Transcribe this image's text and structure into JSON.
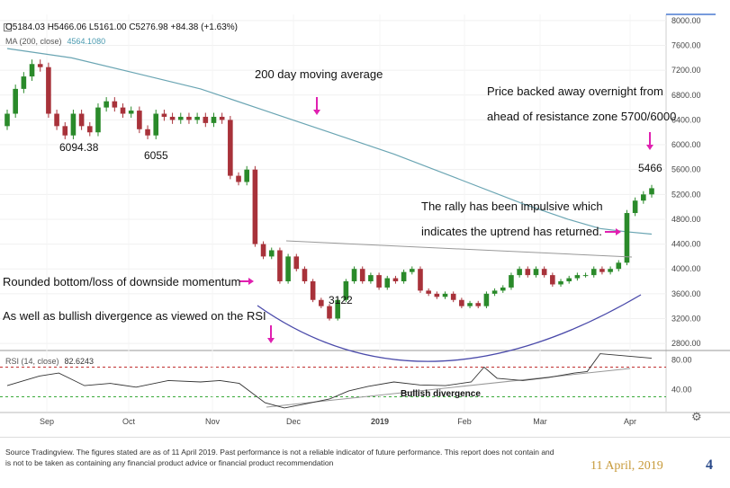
{
  "header": {
    "ohlc": "O5184.03  H5466.06  L5161.00  C5276.98  +84.38 (+1.63%)",
    "ma_label": "MA (200, close)",
    "ma_value": "4564.1080",
    "rsi_label": "RSI (14, close)",
    "rsi_value": "82.6243"
  },
  "annotations": {
    "ma_title": "200 day moving average",
    "price_line1": "Price backed away overnight from",
    "price_line2": "ahead of resistance zone 5700/6000",
    "rally_line1": "The rally has been impulsive which",
    "rally_line2": "indicates the uptrend has returned.",
    "rounded": "Rounded bottom/loss of downside momentum",
    "bullish": "As well as bullish divergence as viewed on the RSI",
    "bull_div": "Bullish divergence",
    "low1": "6094.38",
    "low2": "6055",
    "low3": "3122",
    "high1": "5466"
  },
  "footer": {
    "source": "Source Tradingview. The figures stated are as of 11 April 2019.  Past performance is not a reliable indicator of future performance.  This report does not contain and is not to be taken as containing any financial product advice or financial product recommendation",
    "date": "11 April, 2019",
    "page": "4"
  },
  "colors": {
    "up": "#2a8a2a",
    "down": "#a8323a",
    "ma": "#6aa5b3",
    "curve": "#4a4aaa",
    "arrow": "#e020b0"
  },
  "chart_data": {
    "type": "candlestick",
    "x_ticks": [
      "Sep",
      "Oct",
      "Nov",
      "Dec",
      "2019",
      "Feb",
      "Mar",
      "Apr"
    ],
    "price_ticks": [
      8000,
      7600,
      7200,
      6800,
      6400,
      6000,
      5600,
      5200,
      4800,
      4400,
      4000,
      3600,
      3200,
      2800
    ],
    "rsi_ticks": [
      80,
      40
    ],
    "ylim": [
      2700,
      8100
    ],
    "rsi_ylim": [
      10,
      90
    ],
    "rsi_levels": [
      70,
      30
    ],
    "price": [
      [
        6300,
        6500
      ],
      [
        6500,
        6900
      ],
      [
        6900,
        7100
      ],
      [
        7100,
        7300
      ],
      [
        7300,
        7250
      ],
      [
        7250,
        6500
      ],
      [
        6500,
        6300
      ],
      [
        6300,
        6150
      ],
      [
        6150,
        6500
      ],
      [
        6500,
        6300
      ],
      [
        6300,
        6200
      ],
      [
        6200,
        6600
      ],
      [
        6600,
        6700
      ],
      [
        6700,
        6600
      ],
      [
        6600,
        6500
      ],
      [
        6500,
        6550
      ],
      [
        6550,
        6250
      ],
      [
        6250,
        6150
      ],
      [
        6150,
        6500
      ],
      [
        6500,
        6450
      ],
      [
        6450,
        6400
      ],
      [
        6400,
        6450
      ],
      [
        6450,
        6400
      ],
      [
        6400,
        6450
      ],
      [
        6450,
        6350
      ],
      [
        6350,
        6450
      ],
      [
        6450,
        6400
      ],
      [
        6400,
        5500
      ],
      [
        5500,
        5400
      ],
      [
        5400,
        5600
      ],
      [
        5600,
        4400
      ],
      [
        4400,
        4200
      ],
      [
        4200,
        4300
      ],
      [
        4300,
        3800
      ],
      [
        3800,
        4200
      ],
      [
        4200,
        4000
      ],
      [
        4000,
        3800
      ],
      [
        3800,
        3500
      ],
      [
        3500,
        3400
      ],
      [
        3400,
        3200
      ],
      [
        3200,
        3500
      ],
      [
        3500,
        3800
      ],
      [
        3800,
        4000
      ],
      [
        4000,
        3800
      ],
      [
        3800,
        3900
      ],
      [
        3900,
        3700
      ],
      [
        3700,
        3850
      ],
      [
        3850,
        3800
      ],
      [
        3800,
        3950
      ],
      [
        3950,
        4000
      ],
      [
        4000,
        3650
      ],
      [
        3650,
        3600
      ],
      [
        3600,
        3550
      ],
      [
        3550,
        3600
      ],
      [
        3600,
        3500
      ],
      [
        3500,
        3400
      ],
      [
        3400,
        3450
      ],
      [
        3450,
        3400
      ],
      [
        3400,
        3600
      ],
      [
        3600,
        3650
      ],
      [
        3650,
        3700
      ],
      [
        3700,
        3900
      ],
      [
        3900,
        4000
      ],
      [
        4000,
        3900
      ],
      [
        3900,
        4000
      ],
      [
        4000,
        3900
      ],
      [
        3900,
        3750
      ],
      [
        3750,
        3800
      ],
      [
        3800,
        3850
      ],
      [
        3850,
        3900
      ],
      [
        3900,
        3900
      ],
      [
        3900,
        4000
      ],
      [
        4000,
        3950
      ],
      [
        3950,
        4000
      ],
      [
        4000,
        4100
      ],
      [
        4100,
        4900
      ],
      [
        4900,
        5100
      ],
      [
        5100,
        5200
      ],
      [
        5200,
        5300
      ]
    ],
    "ma200": [
      [
        0,
        7550
      ],
      [
        0.1,
        7400
      ],
      [
        0.2,
        7150
      ],
      [
        0.3,
        6900
      ],
      [
        0.4,
        6550
      ],
      [
        0.5,
        6200
      ],
      [
        0.6,
        5850
      ],
      [
        0.7,
        5450
      ],
      [
        0.8,
        5050
      ],
      [
        0.87,
        4800
      ],
      [
        0.92,
        4650
      ],
      [
        0.96,
        4600
      ],
      [
        1.0,
        4560
      ]
    ],
    "rsi": [
      [
        0,
        45
      ],
      [
        0.05,
        58
      ],
      [
        0.08,
        62
      ],
      [
        0.12,
        45
      ],
      [
        0.16,
        48
      ],
      [
        0.2,
        43
      ],
      [
        0.25,
        52
      ],
      [
        0.3,
        50
      ],
      [
        0.33,
        52
      ],
      [
        0.36,
        48
      ],
      [
        0.4,
        22
      ],
      [
        0.43,
        15
      ],
      [
        0.46,
        20
      ],
      [
        0.5,
        27
      ],
      [
        0.53,
        38
      ],
      [
        0.56,
        44
      ],
      [
        0.6,
        50
      ],
      [
        0.64,
        46
      ],
      [
        0.68,
        45
      ],
      [
        0.72,
        50
      ],
      [
        0.74,
        70
      ],
      [
        0.76,
        55
      ],
      [
        0.8,
        52
      ],
      [
        0.84,
        56
      ],
      [
        0.88,
        62
      ],
      [
        0.9,
        64
      ],
      [
        0.92,
        88
      ],
      [
        0.96,
        85
      ],
      [
        1.0,
        82
      ]
    ]
  }
}
